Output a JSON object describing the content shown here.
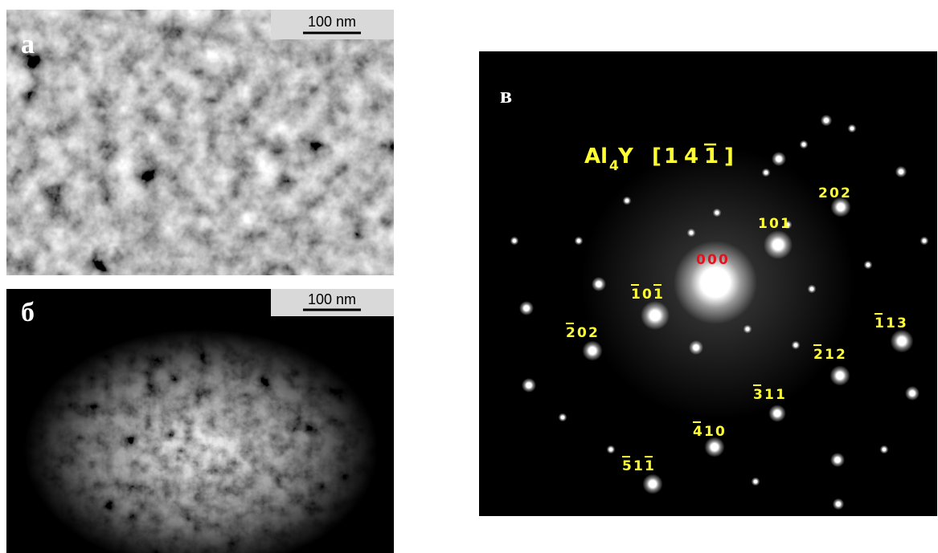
{
  "panels": [
    {
      "letter": "а",
      "scale_bar": "100 nm"
    },
    {
      "letter": "б",
      "scale_bar": "100 nm"
    },
    {
      "letter": "в",
      "zone_axis": {
        "phase": "Al",
        "subscript": "4",
        "phase_end": "Y",
        "open": "[",
        "indices": [
          "1",
          "4",
          "1"
        ],
        "overlined": [
          2
        ],
        "close": "]"
      },
      "spots": [
        {
          "digits": [
            "0",
            "0",
            "0"
          ],
          "overlined": [],
          "color": "#e8101a"
        },
        {
          "digits": [
            "1",
            "0",
            "1"
          ],
          "overlined": [],
          "color": "#ffff33"
        },
        {
          "digits": [
            "2",
            "0",
            "2"
          ],
          "overlined": [],
          "color": "#ffff33"
        },
        {
          "digits": [
            "1",
            "0",
            "1"
          ],
          "overlined": [
            0,
            2
          ],
          "color": "#ffff33"
        },
        {
          "digits": [
            "2",
            "0",
            "2"
          ],
          "overlined": [
            0
          ],
          "color": "#ffff33"
        },
        {
          "digits": [
            "1",
            "1",
            "3"
          ],
          "overlined": [
            0
          ],
          "color": "#ffff33"
        },
        {
          "digits": [
            "2",
            "1",
            "2"
          ],
          "overlined": [
            0
          ],
          "color": "#ffff33"
        },
        {
          "digits": [
            "3",
            "1",
            "1"
          ],
          "overlined": [
            0
          ],
          "color": "#ffff33"
        },
        {
          "digits": [
            "4",
            "1",
            "0"
          ],
          "overlined": [
            0
          ],
          "color": "#ffff33"
        },
        {
          "digits": [
            "5",
            "1",
            "1"
          ],
          "overlined": [
            0,
            2
          ],
          "color": "#ffff33"
        }
      ]
    }
  ]
}
